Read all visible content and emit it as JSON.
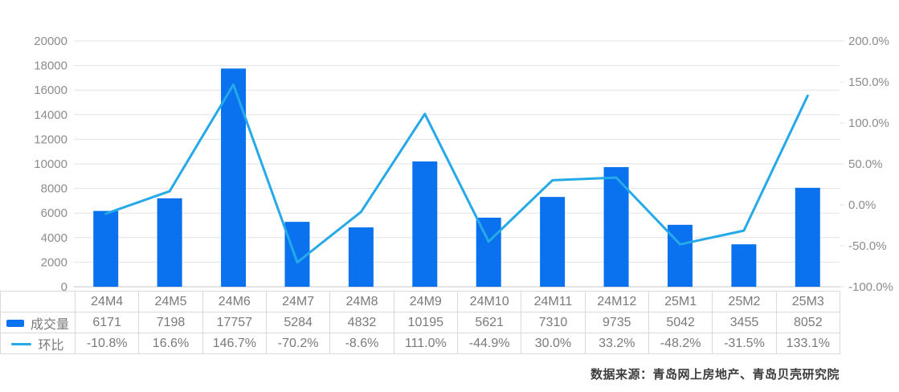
{
  "chart_data": {
    "type": "bar+line",
    "categories": [
      "24M4",
      "24M5",
      "24M6",
      "24M7",
      "24M8",
      "24M9",
      "24M10",
      "24M11",
      "24M12",
      "25M1",
      "25M2",
      "25M3"
    ],
    "series": [
      {
        "name": "成交量",
        "type": "bar",
        "axis": "left",
        "color": "#0a72ee",
        "values": [
          6171,
          7198,
          17757,
          5284,
          4832,
          10195,
          5621,
          7310,
          9735,
          5042,
          3455,
          8052
        ]
      },
      {
        "name": "环比",
        "type": "line",
        "axis": "right",
        "color": "#25a9e8",
        "values": [
          -10.8,
          16.6,
          146.7,
          -70.2,
          -8.6,
          111.0,
          -44.9,
          30.0,
          33.2,
          -48.2,
          -31.5,
          133.1
        ]
      }
    ],
    "left_axis": {
      "min": 0,
      "max": 20000,
      "step": 2000,
      "tick_labels": [
        "20000",
        "18000",
        "16000",
        "14000",
        "12000",
        "10000",
        "8000",
        "6000",
        "4000",
        "2000",
        "0"
      ]
    },
    "right_axis": {
      "min": -100,
      "max": 200,
      "step": 50,
      "tick_labels": [
        "200.0%",
        "150.0%",
        "100.0%",
        "50.0%",
        "0.0%",
        "-50.0%",
        "-100.0%"
      ]
    },
    "grid": true,
    "legend_position": "table-left"
  },
  "table": {
    "legend_labels": [
      "成交量",
      "环比"
    ],
    "category_row": [
      "24M4",
      "24M5",
      "24M6",
      "24M7",
      "24M8",
      "24M9",
      "24M10",
      "24M11",
      "24M12",
      "25M1",
      "25M2",
      "25M3"
    ],
    "volume_row": [
      "6171",
      "7198",
      "17757",
      "5284",
      "4832",
      "10195",
      "5621",
      "7310",
      "9735",
      "5042",
      "3455",
      "8052"
    ],
    "ratio_row": [
      "-10.8%",
      "16.6%",
      "146.7%",
      "-70.2%",
      "-8.6%",
      "111.0%",
      "-44.9%",
      "30.0%",
      "33.2%",
      "-48.2%",
      "-31.5%",
      "133.1%"
    ]
  },
  "footer": {
    "source_text": "数据来源：青岛网上房地产、青岛贝壳研究院"
  },
  "colors": {
    "bar": "#0a72ee",
    "line": "#25a9e8",
    "grid_line": "#e3e3e3",
    "axis_line": "#c9c9c9",
    "axis_text": "#8c8c8c",
    "table_text": "#7a7a7a",
    "table_border": "#d9d9d9",
    "source_text": "#3d3d3d"
  }
}
